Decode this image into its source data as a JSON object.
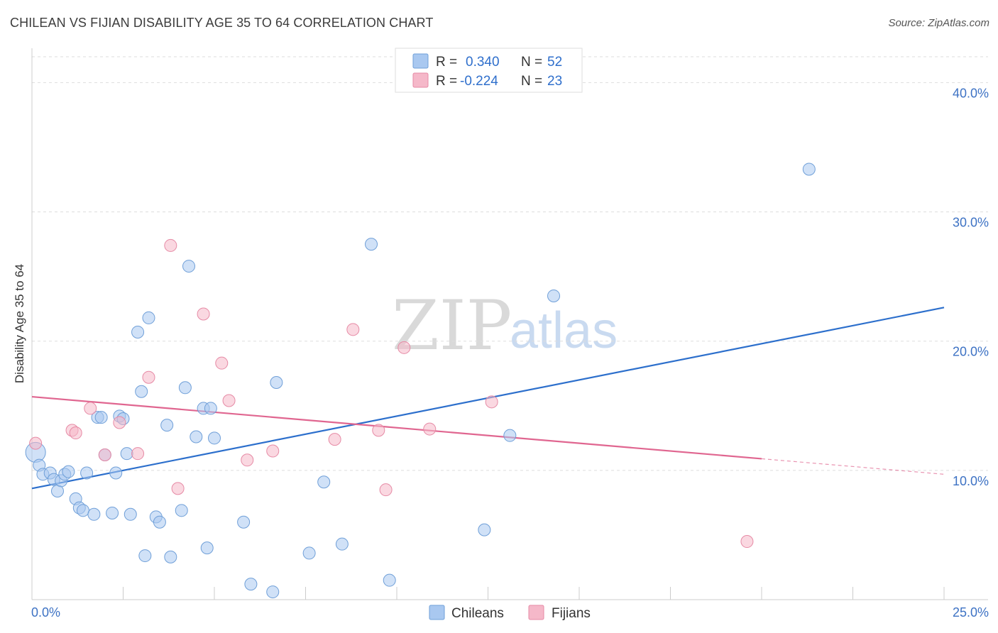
{
  "header": {
    "title": "CHILEAN VS FIJIAN DISABILITY AGE 35 TO 64 CORRELATION CHART",
    "source": "Source: ZipAtlas.com"
  },
  "watermark": {
    "zip": "ZIP",
    "atlas": "atlas"
  },
  "legend": {
    "rows": [
      {
        "r_label": "R = ",
        "r_value": "0.340",
        "n_label": "N = ",
        "n_value": "52",
        "color": "#a9c8f0"
      },
      {
        "r_label": "R = ",
        "r_value": "-0.224",
        "n_label": "N = ",
        "n_value": "23",
        "color": "#f5b8c9"
      }
    ]
  },
  "bottom_legend": [
    {
      "label": "Chileans",
      "color": "#a9c8f0"
    },
    {
      "label": "Fijians",
      "color": "#f5b8c9"
    }
  ],
  "chart_data": {
    "type": "scatter",
    "title": "CHILEAN VS FIJIAN DISABILITY AGE 35 TO 64 CORRELATION CHART",
    "xlabel": "",
    "ylabel": "Disability Age 35 to 64",
    "xlim": [
      0,
      25
    ],
    "ylim": [
      0,
      42
    ],
    "x_tick_labels": [
      "0.0%",
      "25.0%"
    ],
    "y_ticks": [
      10,
      20,
      30,
      40
    ],
    "y_tick_labels": [
      "10.0%",
      "20.0%",
      "30.0%",
      "40.0%"
    ],
    "series": [
      {
        "name": "Chileans",
        "color": "#a9c8f0",
        "edge": "#6f9fd8",
        "points": [
          [
            0.1,
            11.4
          ],
          [
            0.2,
            10.4
          ],
          [
            0.3,
            9.7
          ],
          [
            0.5,
            9.8
          ],
          [
            0.6,
            9.3
          ],
          [
            0.7,
            8.4
          ],
          [
            0.8,
            9.2
          ],
          [
            0.9,
            9.7
          ],
          [
            1.0,
            9.9
          ],
          [
            1.2,
            7.8
          ],
          [
            1.3,
            7.1
          ],
          [
            1.4,
            6.9
          ],
          [
            1.5,
            9.8
          ],
          [
            1.7,
            6.6
          ],
          [
            1.8,
            14.1
          ],
          [
            1.9,
            14.1
          ],
          [
            2.0,
            11.2
          ],
          [
            2.2,
            6.7
          ],
          [
            2.3,
            9.8
          ],
          [
            2.4,
            14.2
          ],
          [
            2.5,
            14.0
          ],
          [
            2.6,
            11.3
          ],
          [
            2.7,
            6.6
          ],
          [
            2.9,
            20.7
          ],
          [
            3.0,
            16.1
          ],
          [
            3.1,
            3.4
          ],
          [
            3.2,
            21.8
          ],
          [
            3.4,
            6.4
          ],
          [
            3.5,
            6.0
          ],
          [
            3.7,
            13.5
          ],
          [
            3.8,
            3.3
          ],
          [
            4.1,
            6.9
          ],
          [
            4.2,
            16.4
          ],
          [
            4.3,
            25.8
          ],
          [
            4.5,
            12.6
          ],
          [
            4.7,
            14.8
          ],
          [
            4.8,
            4.0
          ],
          [
            4.9,
            14.8
          ],
          [
            5.0,
            12.5
          ],
          [
            5.8,
            6.0
          ],
          [
            6.0,
            1.2
          ],
          [
            6.6,
            0.6
          ],
          [
            6.7,
            16.8
          ],
          [
            7.6,
            3.6
          ],
          [
            8.0,
            9.1
          ],
          [
            8.5,
            4.3
          ],
          [
            9.3,
            27.5
          ],
          [
            9.8,
            1.5
          ],
          [
            12.4,
            5.4
          ],
          [
            13.1,
            12.7
          ],
          [
            14.3,
            23.5
          ],
          [
            21.3,
            33.3
          ]
        ]
      },
      {
        "name": "Fijians",
        "color": "#f5b8c9",
        "edge": "#e68aa5",
        "points": [
          [
            0.1,
            12.1
          ],
          [
            1.1,
            13.1
          ],
          [
            1.2,
            12.9
          ],
          [
            1.6,
            14.8
          ],
          [
            2.0,
            11.2
          ],
          [
            2.4,
            13.7
          ],
          [
            2.9,
            11.3
          ],
          [
            3.2,
            17.2
          ],
          [
            3.8,
            27.4
          ],
          [
            4.0,
            8.6
          ],
          [
            4.7,
            22.1
          ],
          [
            5.2,
            18.3
          ],
          [
            5.4,
            15.4
          ],
          [
            5.9,
            10.8
          ],
          [
            6.6,
            11.5
          ],
          [
            8.3,
            12.4
          ],
          [
            8.8,
            20.9
          ],
          [
            9.5,
            13.1
          ],
          [
            9.7,
            8.5
          ],
          [
            10.2,
            19.5
          ],
          [
            10.9,
            13.2
          ],
          [
            12.6,
            15.3
          ],
          [
            19.6,
            4.5
          ]
        ]
      }
    ],
    "trendlines": [
      {
        "series": "Chileans",
        "x": [
          0,
          25
        ],
        "y": [
          8.6,
          22.6
        ],
        "color": "#2c6fcc"
      },
      {
        "series": "Fijians",
        "x": [
          0,
          20
        ],
        "y": [
          15.7,
          10.9
        ],
        "dashed_to": [
          25,
          9.7
        ],
        "color": "#e06690"
      }
    ]
  }
}
